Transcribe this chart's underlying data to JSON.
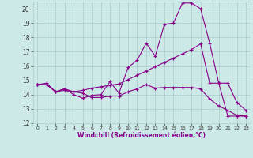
{
  "xlabel": "Windchill (Refroidissement éolien,°C)",
  "background_color": "#cce9e8",
  "grid_color": "#aacccc",
  "line_color": "#880088",
  "xlim": [
    -0.5,
    23.5
  ],
  "ylim": [
    12,
    20.5
  ],
  "yticks": [
    12,
    13,
    14,
    15,
    16,
    17,
    18,
    19,
    20
  ],
  "xticks": [
    0,
    1,
    2,
    3,
    4,
    5,
    6,
    7,
    8,
    9,
    10,
    11,
    12,
    13,
    14,
    15,
    16,
    17,
    18,
    19,
    20,
    21,
    22,
    23
  ],
  "line1_x": [
    0,
    1,
    2,
    3,
    4,
    5,
    6,
    7,
    8,
    9,
    10,
    11,
    12,
    13,
    14,
    15,
    16,
    17,
    18,
    19,
    20,
    21,
    22,
    23
  ],
  "line1_y": [
    14.7,
    14.8,
    14.2,
    14.4,
    14.0,
    13.75,
    13.95,
    14.0,
    14.9,
    14.1,
    15.9,
    16.4,
    17.6,
    16.7,
    18.9,
    19.0,
    20.4,
    20.4,
    20.0,
    17.6,
    14.8,
    12.5,
    12.5,
    12.5
  ],
  "line2_x": [
    0,
    1,
    2,
    3,
    4,
    5,
    6,
    7,
    8,
    9,
    10,
    11,
    12,
    13,
    14,
    15,
    16,
    17,
    18,
    19,
    20,
    21,
    22,
    23
  ],
  "line2_y": [
    14.7,
    14.7,
    14.2,
    14.4,
    14.2,
    14.3,
    14.45,
    14.55,
    14.65,
    14.75,
    15.05,
    15.35,
    15.65,
    15.95,
    16.25,
    16.55,
    16.85,
    17.15,
    17.55,
    14.8,
    14.8,
    14.8,
    13.45,
    12.9
  ],
  "line3_x": [
    0,
    1,
    2,
    3,
    4,
    5,
    6,
    7,
    8,
    9,
    10,
    11,
    12,
    13,
    14,
    15,
    16,
    17,
    18,
    19,
    20,
    21,
    22,
    23
  ],
  "line3_y": [
    14.7,
    14.7,
    14.2,
    14.3,
    14.2,
    14.1,
    13.8,
    13.8,
    13.9,
    13.9,
    14.2,
    14.4,
    14.7,
    14.45,
    14.5,
    14.5,
    14.5,
    14.5,
    14.4,
    13.7,
    13.2,
    12.9,
    12.55,
    12.5
  ]
}
